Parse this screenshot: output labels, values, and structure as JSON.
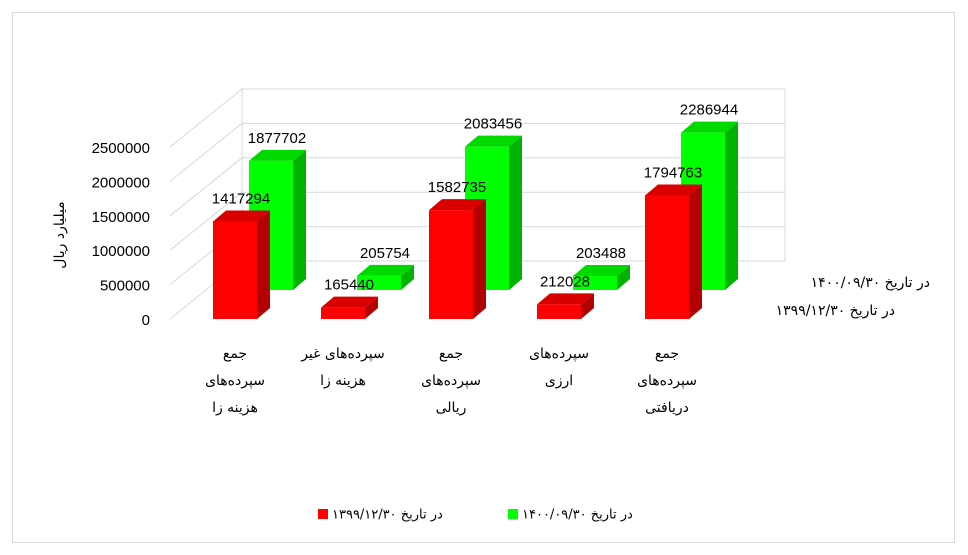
{
  "chart_data": {
    "type": "bar3d",
    "y_axis_label": "میلیارد ریال",
    "categories": [
      "جمع سپرده‌های هزینه زا",
      "سپرده‌های غیر هزینه زا",
      "جمع سپرده‌های ریالی",
      "سپرده‌های ارزی",
      "جمع سپرده‌های دریافتی"
    ],
    "series": [
      {
        "name": "در تاریخ ۱۳۹۹/۱۲/۳۰",
        "color": "#ff0000",
        "values": [
          1417294,
          165440,
          1582735,
          212028,
          1794763
        ]
      },
      {
        "name": "در تاریخ ۱۴۰۰/۰۹/۳۰",
        "color": "#00ff00",
        "values": [
          1877702,
          205754,
          2083456,
          203488,
          2286944
        ]
      }
    ],
    "ylim": [
      0,
      2500000
    ],
    "yticks": [
      0,
      500000,
      1000000,
      1500000,
      2000000,
      2500000
    ],
    "grid": true,
    "legend": "bottom"
  }
}
